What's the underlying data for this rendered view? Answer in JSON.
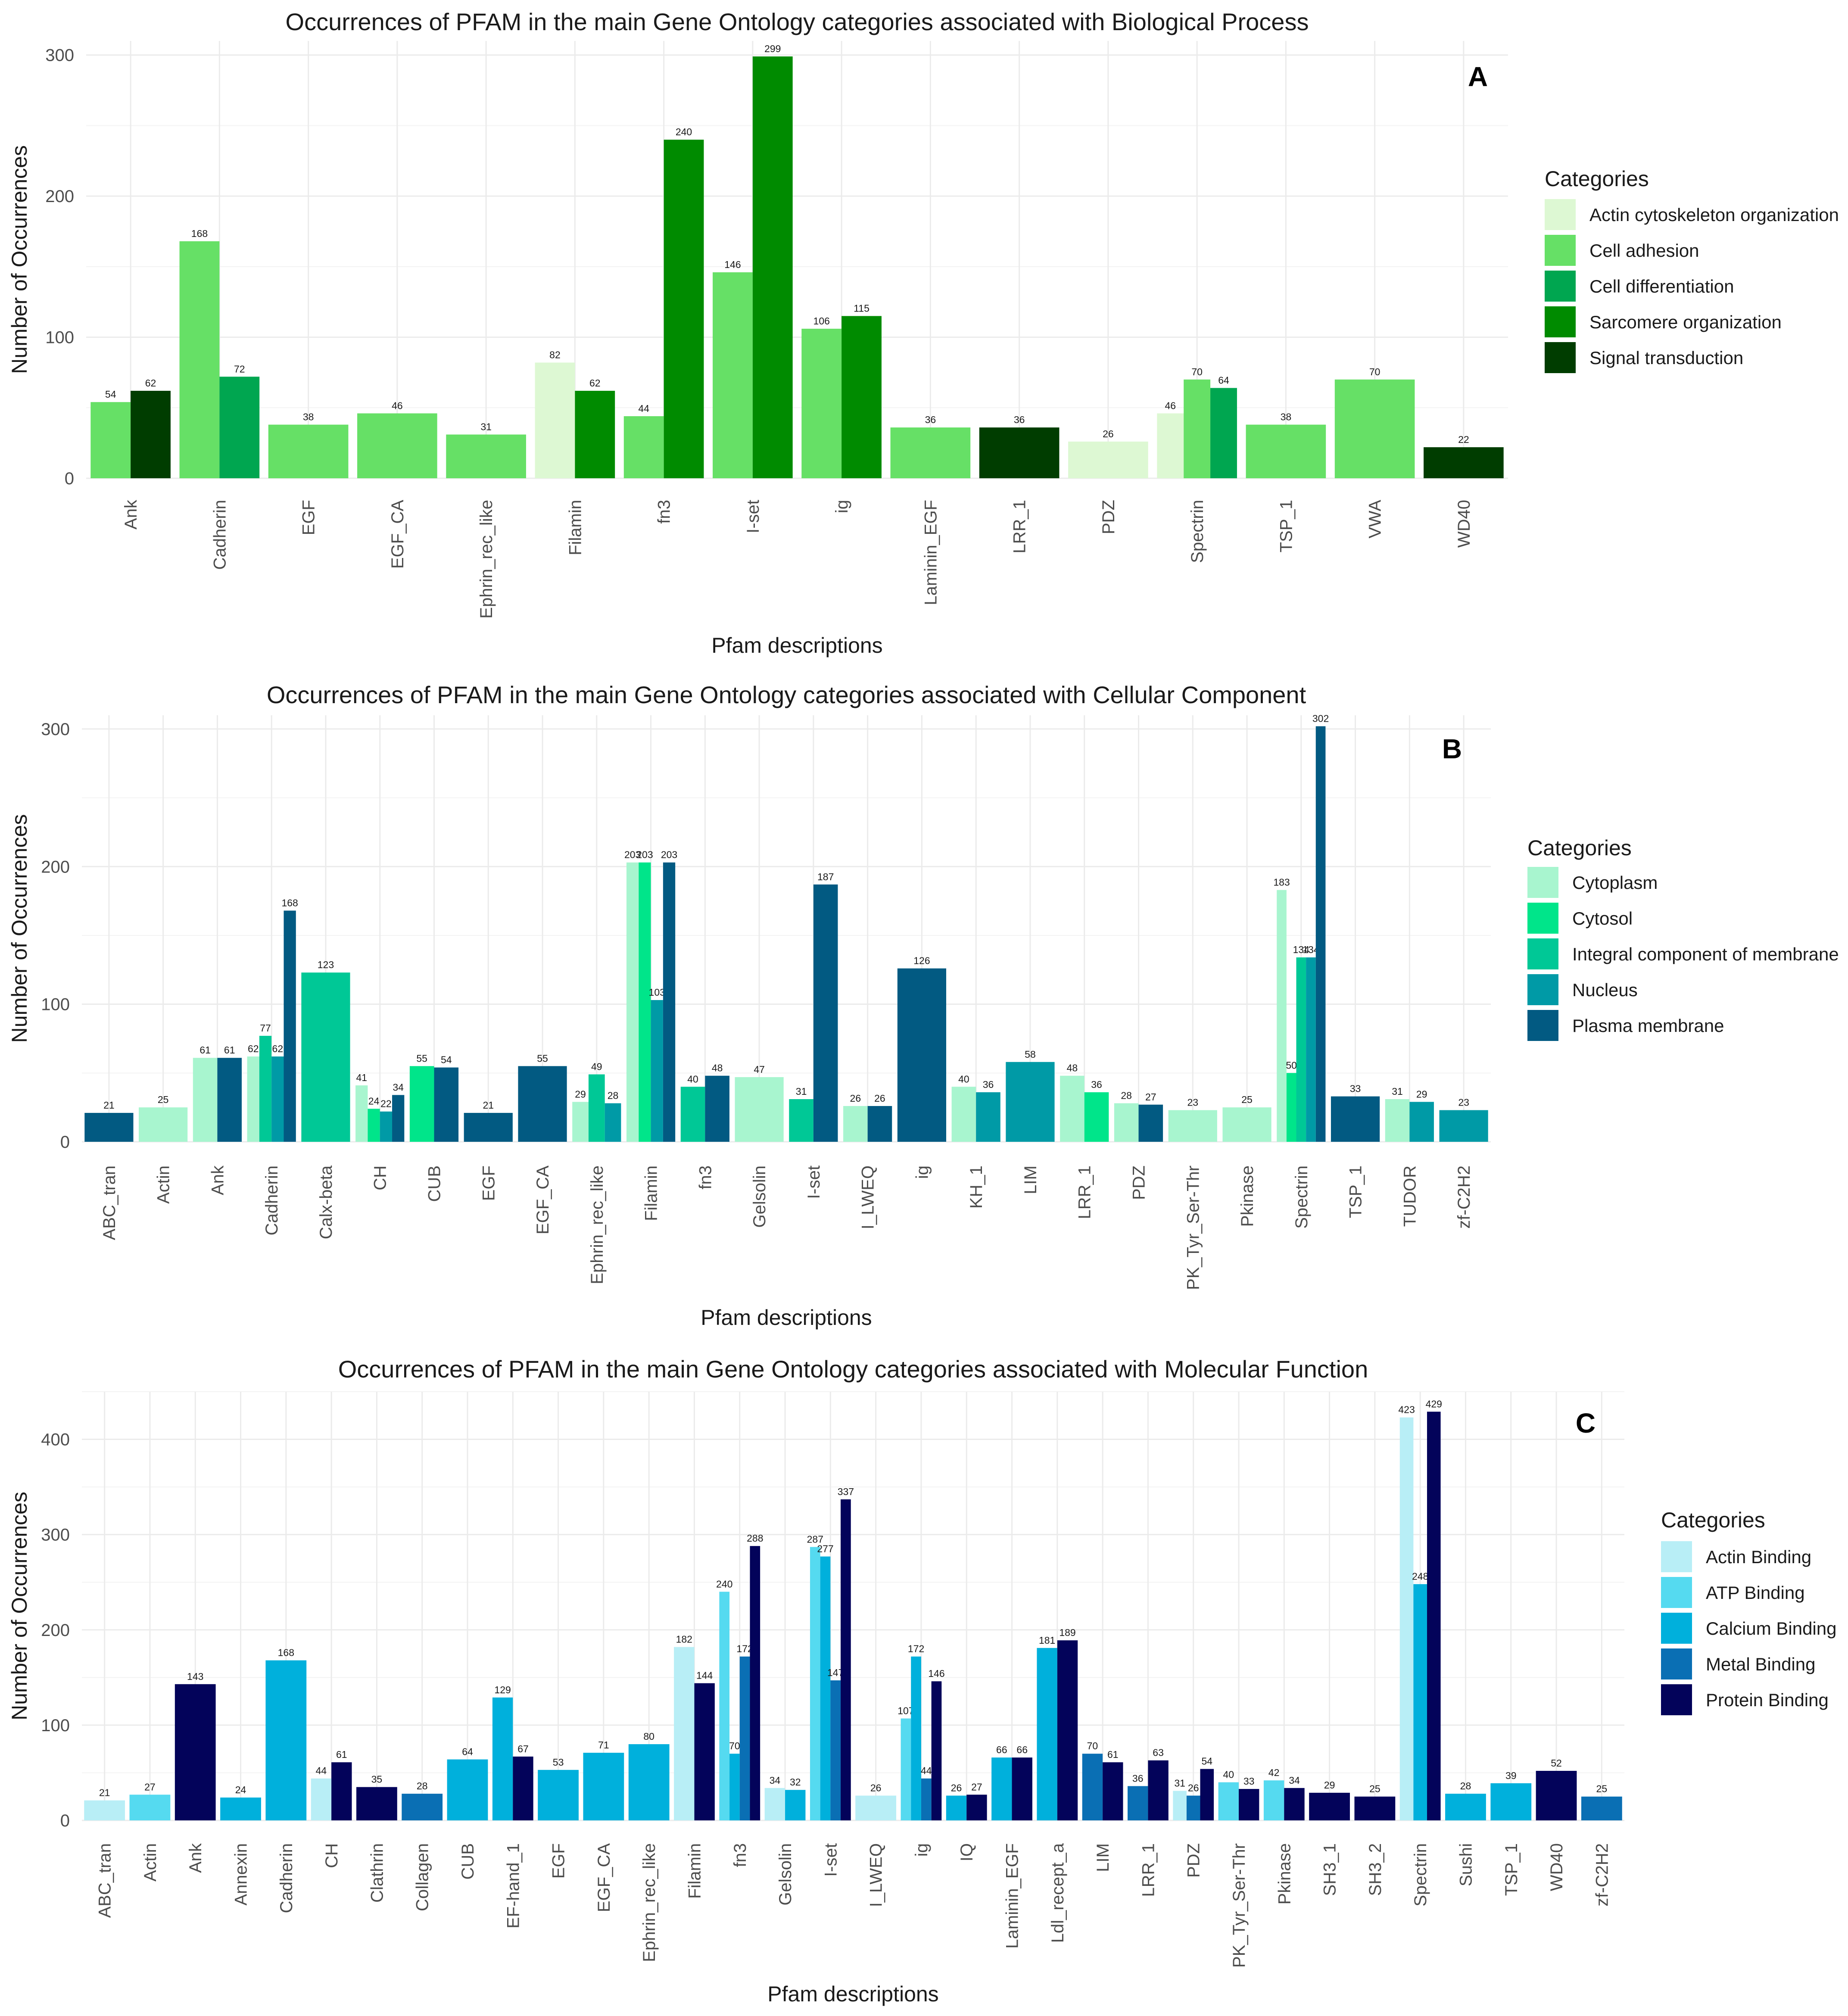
{
  "chart_data": [
    {
      "panel": "A",
      "type": "bar",
      "title": "Occurrences of PFAM in the main Gene Ontology categories associated with Biological Process",
      "xlabel": "Pfam descriptions",
      "ylabel": "Number of Occurrences",
      "ylim": [
        0,
        310
      ],
      "yticks": [
        0,
        100,
        200,
        300
      ],
      "legend_title": "Categories",
      "series_names": [
        "Actin cytoskeleton organization",
        "Cell adhesion",
        "Cell differentiation",
        "Sarcomere organization",
        "Signal transduction"
      ],
      "colors": [
        "#DDF8D3",
        "#66E066",
        "#00A650",
        "#008B00",
        "#003D00"
      ],
      "categories": [
        "Ank",
        "Cadherin",
        "EGF",
        "EGF_CA",
        "Ephrin_rec_like",
        "Filamin",
        "fn3",
        "I-set",
        "ig",
        "Laminin_EGF",
        "LRR_1",
        "PDZ",
        "Spectrin",
        "TSP_1",
        "VWA",
        "WD40"
      ],
      "bars": [
        [
          [
            1,
            54
          ],
          [
            4,
            62
          ]
        ],
        [
          [
            1,
            168
          ],
          [
            2,
            72
          ]
        ],
        [
          [
            1,
            38
          ]
        ],
        [
          [
            1,
            46
          ]
        ],
        [
          [
            1,
            31
          ]
        ],
        [
          [
            0,
            82
          ],
          [
            3,
            62
          ]
        ],
        [
          [
            1,
            44
          ],
          [
            3,
            240
          ]
        ],
        [
          [
            1,
            146
          ],
          [
            3,
            299
          ]
        ],
        [
          [
            1,
            106
          ],
          [
            3,
            115
          ]
        ],
        [
          [
            1,
            36
          ]
        ],
        [
          [
            4,
            36
          ]
        ],
        [
          [
            0,
            26
          ]
        ],
        [
          [
            0,
            46
          ],
          [
            1,
            70
          ],
          [
            2,
            64
          ]
        ],
        [
          [
            1,
            38
          ]
        ],
        [
          [
            1,
            70
          ]
        ],
        [
          [
            4,
            22
          ]
        ]
      ]
    },
    {
      "panel": "B",
      "type": "bar",
      "title": "Occurrences of PFAM in the main Gene Ontology categories associated with Cellular Component",
      "xlabel": "Pfam descriptions",
      "ylabel": "Number of Occurrences",
      "ylim": [
        0,
        310
      ],
      "yticks": [
        0,
        100,
        200,
        300
      ],
      "legend_title": "Categories",
      "series_names": [
        "Cytoplasm",
        "Cytosol",
        "Integral component of membrane",
        "Nucleus",
        "Plasma membrane"
      ],
      "colors": [
        "#A8F5CF",
        "#00E58A",
        "#00C896",
        "#009AA6",
        "#025A82"
      ],
      "categories": [
        "ABC_tran",
        "Actin",
        "Ank",
        "Cadherin",
        "Calx-beta",
        "CH",
        "CUB",
        "EGF",
        "EGF_CA",
        "Ephrin_rec_like",
        "Filamin",
        "fn3",
        "Gelsolin",
        "I-set",
        "I_LWEQ",
        "ig",
        "KH_1",
        "LIM",
        "LRR_1",
        "PDZ",
        "PK_Tyr_Ser-Thr",
        "Pkinase",
        "Spectrin",
        "TSP_1",
        "TUDOR",
        "zf-C2H2"
      ],
      "bars": [
        [
          [
            4,
            21
          ]
        ],
        [
          [
            0,
            25
          ]
        ],
        [
          [
            0,
            61
          ],
          [
            4,
            61
          ]
        ],
        [
          [
            0,
            62
          ],
          [
            2,
            77
          ],
          [
            3,
            62
          ],
          [
            4,
            168
          ]
        ],
        [
          [
            2,
            123
          ]
        ],
        [
          [
            0,
            41
          ],
          [
            1,
            24
          ],
          [
            3,
            22
          ],
          [
            4,
            34
          ]
        ],
        [
          [
            1,
            55
          ],
          [
            4,
            54
          ]
        ],
        [
          [
            4,
            21
          ]
        ],
        [
          [
            4,
            55
          ]
        ],
        [
          [
            0,
            29
          ],
          [
            2,
            49
          ],
          [
            3,
            28
          ]
        ],
        [
          [
            0,
            203
          ],
          [
            1,
            203
          ],
          [
            3,
            103
          ],
          [
            4,
            203
          ]
        ],
        [
          [
            2,
            40
          ],
          [
            4,
            48
          ]
        ],
        [
          [
            0,
            47
          ]
        ],
        [
          [
            2,
            31
          ],
          [
            4,
            187
          ]
        ],
        [
          [
            0,
            26
          ],
          [
            4,
            26
          ]
        ],
        [
          [
            4,
            126
          ]
        ],
        [
          [
            0,
            40
          ],
          [
            3,
            36
          ]
        ],
        [
          [
            3,
            58
          ]
        ],
        [
          [
            0,
            48
          ],
          [
            1,
            36
          ]
        ],
        [
          [
            0,
            28
          ],
          [
            4,
            27
          ]
        ],
        [
          [
            0,
            23
          ]
        ],
        [
          [
            0,
            25
          ]
        ],
        [
          [
            0,
            183
          ],
          [
            1,
            50
          ],
          [
            2,
            134
          ],
          [
            3,
            134
          ],
          [
            4,
            302
          ]
        ],
        [
          [
            4,
            33
          ]
        ],
        [
          [
            0,
            31
          ],
          [
            3,
            29
          ]
        ],
        [
          [
            3,
            23
          ]
        ]
      ]
    },
    {
      "panel": "C",
      "type": "bar",
      "title": "Occurrences of PFAM in the main Gene Ontology categories associated with Molecular Function",
      "xlabel": "Pfam descriptions",
      "ylabel": "Number of Occurrences",
      "ylim": [
        0,
        450
      ],
      "yticks": [
        0,
        100,
        200,
        300,
        400
      ],
      "legend_title": "Categories",
      "series_names": [
        "Actin Binding",
        "ATP Binding",
        "Calcium Binding",
        "Metal Binding",
        "Protein Binding"
      ],
      "colors": [
        "#B8EEF6",
        "#55DAF0",
        "#00B0DC",
        "#0A6FB4",
        "#03035A"
      ],
      "categories": [
        "ABC_tran",
        "Actin",
        "Ank",
        "Annexin",
        "Cadherin",
        "CH",
        "Clathrin",
        "Collagen",
        "CUB",
        "EF-hand_1",
        "EGF",
        "EGF_CA",
        "Ephrin_rec_like",
        "Filamin",
        "fn3",
        "Gelsolin",
        "I-set",
        "I_LWEQ",
        "ig",
        "IQ",
        "Laminin_EGF",
        "Ldl_recept_a",
        "LIM",
        "LRR_1",
        "PDZ",
        "PK_Tyr_Ser-Thr",
        "Pkinase",
        "SH3_1",
        "SH3_2",
        "Spectrin",
        "Sushi",
        "TSP_1",
        "WD40",
        "zf-C2H2"
      ],
      "bars": [
        [
          [
            0,
            21
          ]
        ],
        [
          [
            1,
            27
          ]
        ],
        [
          [
            4,
            143
          ]
        ],
        [
          [
            2,
            24
          ]
        ],
        [
          [
            2,
            168
          ]
        ],
        [
          [
            0,
            44
          ],
          [
            4,
            61
          ]
        ],
        [
          [
            4,
            35
          ]
        ],
        [
          [
            3,
            28
          ]
        ],
        [
          [
            2,
            64
          ]
        ],
        [
          [
            2,
            129
          ],
          [
            4,
            67
          ]
        ],
        [
          [
            2,
            53
          ]
        ],
        [
          [
            2,
            71
          ]
        ],
        [
          [
            2,
            80
          ]
        ],
        [
          [
            0,
            182
          ],
          [
            4,
            144
          ]
        ],
        [
          [
            1,
            240
          ],
          [
            2,
            70
          ],
          [
            3,
            172
          ],
          [
            4,
            288
          ]
        ],
        [
          [
            0,
            34
          ],
          [
            2,
            32
          ]
        ],
        [
          [
            1,
            287
          ],
          [
            2,
            277
          ],
          [
            3,
            147
          ],
          [
            4,
            337
          ]
        ],
        [
          [
            0,
            26
          ]
        ],
        [
          [
            1,
            107
          ],
          [
            2,
            172
          ],
          [
            3,
            44
          ],
          [
            4,
            146
          ]
        ],
        [
          [
            2,
            26
          ],
          [
            4,
            27
          ]
        ],
        [
          [
            2,
            66
          ],
          [
            4,
            66
          ]
        ],
        [
          [
            2,
            181
          ],
          [
            4,
            189
          ]
        ],
        [
          [
            3,
            70
          ],
          [
            4,
            61
          ]
        ],
        [
          [
            3,
            36
          ],
          [
            4,
            63
          ]
        ],
        [
          [
            0,
            31
          ],
          [
            3,
            26
          ],
          [
            4,
            54
          ]
        ],
        [
          [
            1,
            40
          ],
          [
            4,
            33
          ]
        ],
        [
          [
            1,
            42
          ],
          [
            4,
            34
          ]
        ],
        [
          [
            4,
            29
          ]
        ],
        [
          [
            4,
            25
          ]
        ],
        [
          [
            0,
            423
          ],
          [
            2,
            248
          ],
          [
            4,
            429
          ]
        ],
        [
          [
            2,
            28
          ]
        ],
        [
          [
            2,
            39
          ]
        ],
        [
          [
            4,
            52
          ]
        ],
        [
          [
            3,
            25
          ]
        ]
      ]
    }
  ]
}
